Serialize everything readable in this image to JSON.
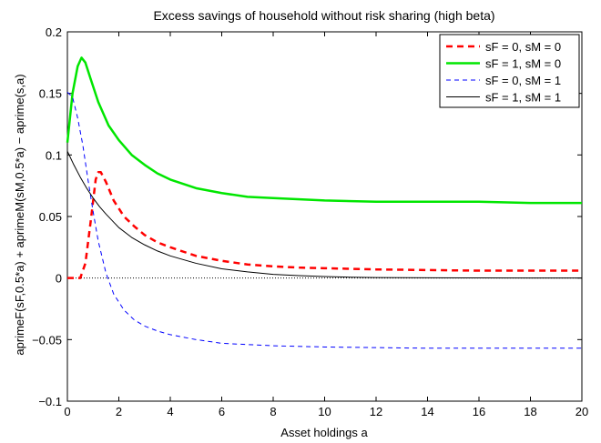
{
  "chart_data": {
    "type": "line",
    "title": "Excess savings of household without risk sharing (high beta)",
    "xlabel": "Asset holdings a",
    "ylabel": "aprimeF(sF,0.5*a) + aprimeM(sM,0.5*a) − aprime(s,a)",
    "xlim": [
      0,
      20
    ],
    "ylim": [
      -0.1,
      0.2
    ],
    "xticks": [
      0,
      2,
      4,
      6,
      8,
      10,
      12,
      14,
      16,
      18,
      20
    ],
    "yticks": [
      -0.1,
      -0.05,
      0,
      0.05,
      0.1,
      0.15,
      0.2
    ],
    "ytick_labels": [
      "−0.1",
      "−0.05",
      "0",
      "0.05",
      "0.1",
      "0.15",
      "0.2"
    ],
    "grid": false,
    "legend_position": "top-right",
    "zero_line": true,
    "series": [
      {
        "name": "sF = 0, sM = 0",
        "color": "#ff0000",
        "dash": "dashed",
        "width": "thick",
        "x": [
          0,
          0.5,
          0.7,
          0.9,
          1.1,
          1.2,
          1.3,
          1.5,
          1.8,
          2.2,
          2.6,
          3,
          3.5,
          4,
          5,
          6,
          7,
          8,
          9,
          10,
          12,
          14,
          16,
          18,
          20
        ],
        "y": [
          0,
          0,
          0.012,
          0.045,
          0.08,
          0.086,
          0.086,
          0.078,
          0.063,
          0.05,
          0.042,
          0.035,
          0.029,
          0.025,
          0.018,
          0.014,
          0.011,
          0.0095,
          0.0085,
          0.008,
          0.007,
          0.0065,
          0.006,
          0.006,
          0.006
        ]
      },
      {
        "name": "sF = 1, sM = 0",
        "color": "#00e600",
        "dash": "solid",
        "width": "thick",
        "x": [
          0,
          0.2,
          0.4,
          0.55,
          0.7,
          0.9,
          1.2,
          1.6,
          2,
          2.5,
          3,
          3.5,
          4,
          5,
          6,
          7,
          8,
          10,
          12,
          14,
          16,
          18,
          20
        ],
        "y": [
          0.11,
          0.15,
          0.172,
          0.179,
          0.175,
          0.162,
          0.143,
          0.124,
          0.112,
          0.1,
          0.092,
          0.085,
          0.08,
          0.073,
          0.069,
          0.066,
          0.065,
          0.063,
          0.062,
          0.062,
          0.062,
          0.061,
          0.061
        ]
      },
      {
        "name": "sF = 0, sM = 1",
        "color": "#0000ff",
        "dash": "dashed",
        "width": "thin",
        "x": [
          0,
          0.2,
          0.4,
          0.6,
          0.8,
          1,
          1.2,
          1.5,
          1.8,
          2.2,
          2.6,
          3,
          3.5,
          4,
          5,
          6,
          7,
          8,
          10,
          12,
          14,
          16,
          18,
          20
        ],
        "y": [
          0.151,
          0.147,
          0.13,
          0.108,
          0.08,
          0.054,
          0.03,
          0.004,
          -0.013,
          -0.026,
          -0.034,
          -0.039,
          -0.043,
          -0.046,
          -0.05,
          -0.053,
          -0.054,
          -0.055,
          -0.056,
          -0.0565,
          -0.057,
          -0.057,
          -0.057,
          -0.057
        ]
      },
      {
        "name": "sF = 1, sM = 1",
        "color": "#000000",
        "dash": "solid",
        "width": "thin",
        "x": [
          0,
          0.25,
          0.5,
          0.75,
          1,
          1.25,
          1.5,
          2,
          2.5,
          3,
          3.5,
          4,
          5,
          6,
          7,
          8,
          9,
          10,
          11,
          12,
          14,
          16,
          18,
          20
        ],
        "y": [
          0.103,
          0.092,
          0.082,
          0.073,
          0.065,
          0.058,
          0.052,
          0.041,
          0.033,
          0.027,
          0.022,
          0.018,
          0.012,
          0.0075,
          0.005,
          0.003,
          0.002,
          0.0012,
          0.0007,
          0.0004,
          0.0002,
          0.0001,
          0,
          0
        ]
      }
    ]
  }
}
